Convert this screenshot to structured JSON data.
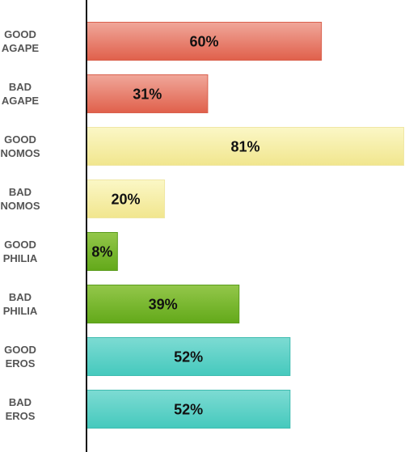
{
  "chart_data": {
    "type": "bar",
    "orientation": "horizontal",
    "title": "",
    "xlabel": "",
    "ylabel": "",
    "xlim": [
      0,
      81
    ],
    "grid": false,
    "legend": "none",
    "categories": [
      [
        "GOOD",
        "AGAPE"
      ],
      [
        "BAD",
        "AGAPE"
      ],
      [
        "GOOD",
        "NOMOS"
      ],
      [
        "BAD",
        "NOMOS"
      ],
      [
        "GOOD",
        "PHILIA"
      ],
      [
        "BAD",
        "PHILIA"
      ],
      [
        "GOOD",
        "EROS"
      ],
      [
        "BAD",
        "EROS"
      ]
    ],
    "values": [
      60,
      31,
      81,
      20,
      8,
      39,
      52,
      52
    ],
    "data_labels": [
      "60%",
      "31%",
      "81%",
      "20%",
      "8%",
      "39%",
      "52%",
      "52%"
    ],
    "colors": [
      {
        "top": "#f0a79a",
        "bottom": "#e0604b",
        "border": "#d9604d"
      },
      {
        "top": "#f0a79a",
        "bottom": "#e0604b",
        "border": "#d9604d"
      },
      {
        "top": "#fbf7c6",
        "bottom": "#f1e68e",
        "border": "#efe7a4"
      },
      {
        "top": "#fbf7c6",
        "bottom": "#f1e68e",
        "border": "#efe7a4"
      },
      {
        "top": "#93c74a",
        "bottom": "#63a91a",
        "border": "#5a9c1c"
      },
      {
        "top": "#93c74a",
        "bottom": "#63a91a",
        "border": "#5a9c1c"
      },
      {
        "top": "#7ddbd3",
        "bottom": "#45c9bd",
        "border": "#3fbcb0"
      },
      {
        "top": "#7ddbd3",
        "bottom": "#45c9bd",
        "border": "#3fbcb0"
      }
    ],
    "axis_color": "#111111"
  }
}
